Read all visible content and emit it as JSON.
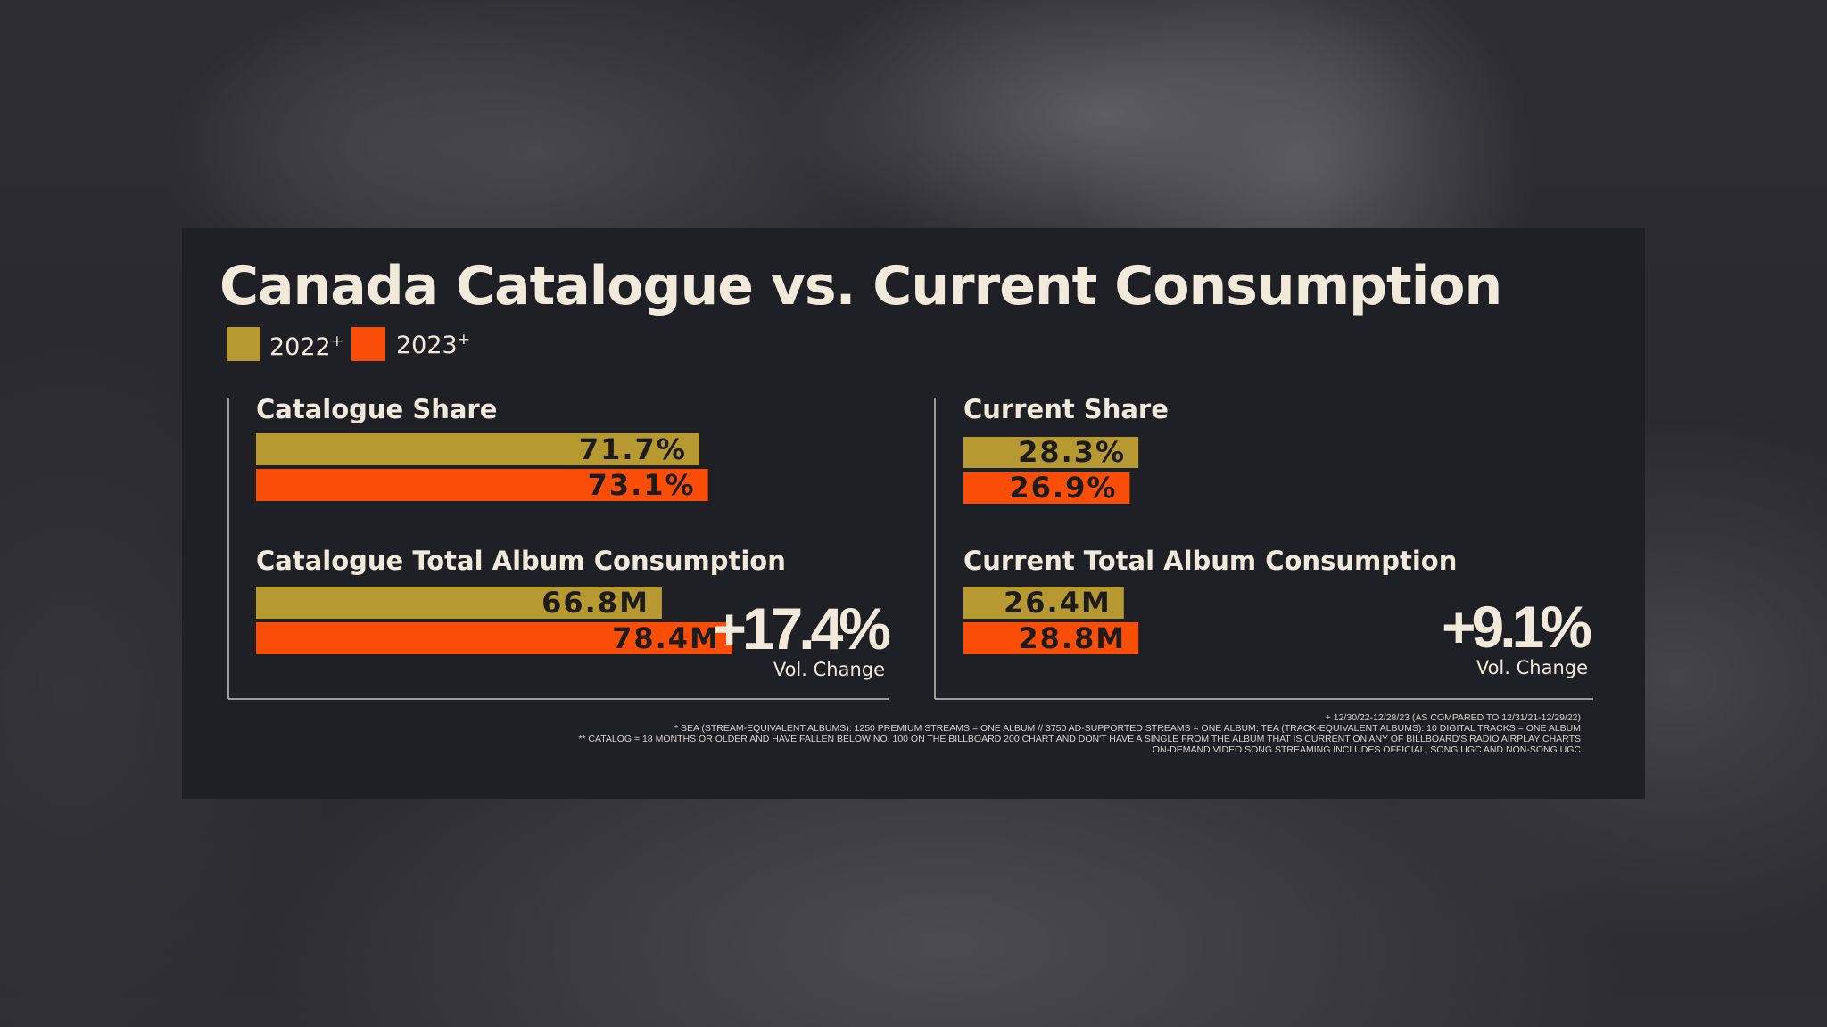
{
  "colors": {
    "series_2022": "#b69a31",
    "series_2023": "#f94d08",
    "panel": "#1f1f26",
    "text": "#f1eadb"
  },
  "chart_data": {
    "type": "bar",
    "title": "Canada Catalogue vs. Current Consumption",
    "legend": {
      "placement": "top-left",
      "entries": [
        {
          "name": "2022",
          "sup": "+"
        },
        {
          "name": "2023",
          "sup": "+"
        }
      ]
    },
    "panels": [
      {
        "title": "Catalogue Share",
        "unit": "percent",
        "series": [
          {
            "name": "2022",
            "value": 71.7,
            "label": "71.7%"
          },
          {
            "name": "2023",
            "value": 73.1,
            "label": "73.1%"
          }
        ]
      },
      {
        "title": "Catalogue Total Album Consumption",
        "unit": "millions",
        "series": [
          {
            "name": "2022",
            "value": 66.8,
            "label": "66.8M"
          },
          {
            "name": "2023",
            "value": 78.4,
            "label": "78.4M"
          }
        ],
        "change": {
          "value": "+17.4%",
          "caption": "Vol. Change"
        }
      },
      {
        "title": "Current Share",
        "unit": "percent",
        "series": [
          {
            "name": "2022",
            "value": 28.3,
            "label": "28.3%"
          },
          {
            "name": "2023",
            "value": 26.9,
            "label": "26.9%"
          }
        ]
      },
      {
        "title": "Current Total Album Consumption",
        "unit": "millions",
        "series": [
          {
            "name": "2022",
            "value": 26.4,
            "label": "26.4M"
          },
          {
            "name": "2023",
            "value": 28.8,
            "label": "28.8M"
          }
        ],
        "change": {
          "value": "+9.1%",
          "caption": "Vol. Change"
        }
      }
    ],
    "footnotes": [
      "+ 12/30/22-12/28/23 (AS COMPARED TO 12/31/21-12/29/22)",
      "* SEA (STREAM-EQUIVALENT ALBUMS): 1250 PREMIUM STREAMS = ONE ALBUM // 3750 AD-SUPPORTED STREAMS = ONE ALBUM; TEA (TRACK-EQUIVALENT ALBUMS): 10 DIGITAL TRACKS = ONE ALBUM",
      "** CATALOG = 18 MONTHS OR OLDER AND HAVE FALLEN BELOW NO. 100 ON THE BILLBOARD 200 CHART AND DON'T HAVE A SINGLE FROM THE ALBUM THAT IS CURRENT ON ANY OF BILLBOARD'S RADIO AIRPLAY CHARTS",
      "ON-DEMAND VIDEO SONG STREAMING INCLUDES OFFICIAL, SONG UGC AND NON-SONG UGC"
    ]
  }
}
